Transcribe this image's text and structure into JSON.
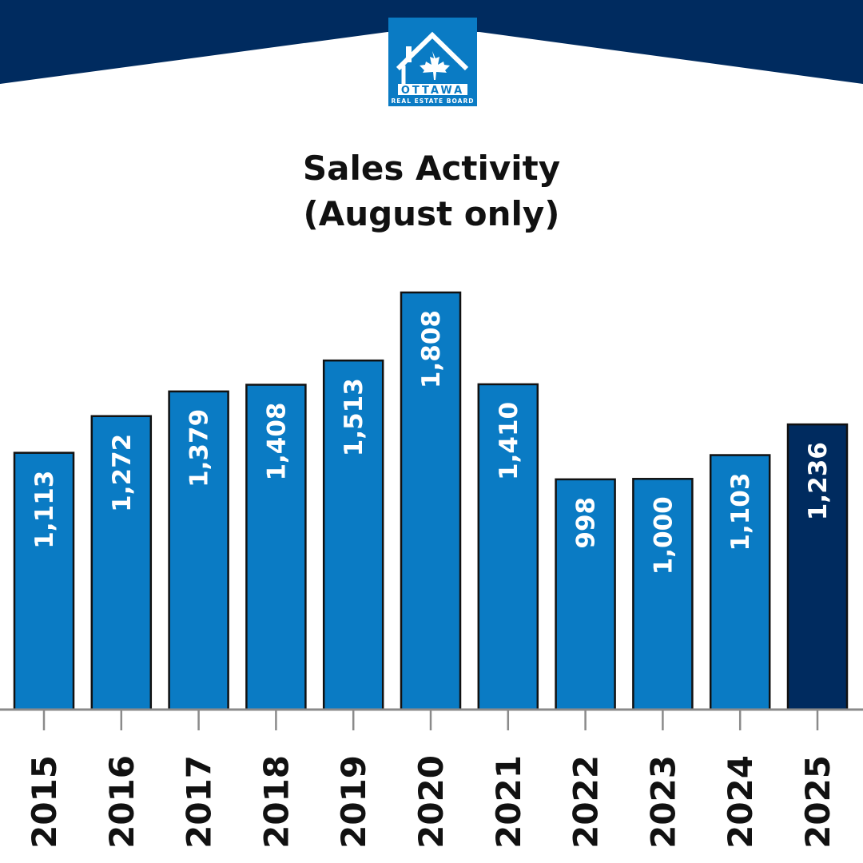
{
  "brand": {
    "logo_text_line1": "OTTAWA",
    "logo_text_line2": "REAL ESTATE BOARD",
    "header_color": "#002b5f",
    "logo_color": "#0a7bc4"
  },
  "chart_data": {
    "type": "bar",
    "title": "Sales Activity",
    "subtitle": "(August only)",
    "categories": [
      "2015",
      "2016",
      "2017",
      "2018",
      "2019",
      "2020",
      "2021",
      "2022",
      "2023",
      "2024",
      "2025"
    ],
    "values": [
      1113,
      1272,
      1379,
      1408,
      1513,
      1808,
      1410,
      998,
      1000,
      1103,
      1236
    ],
    "value_labels": [
      "1,113",
      "1,272",
      "1,379",
      "1,408",
      "1,513",
      "1,808",
      "1,410",
      "998",
      "1,000",
      "1,103",
      "1,236"
    ],
    "ylim": [
      0,
      1808
    ],
    "grid": false,
    "colors": {
      "bar": "#0a7bc4",
      "highlight": "#002b5f",
      "highlight_category": "2025",
      "axis": "#8a8a8a"
    }
  }
}
